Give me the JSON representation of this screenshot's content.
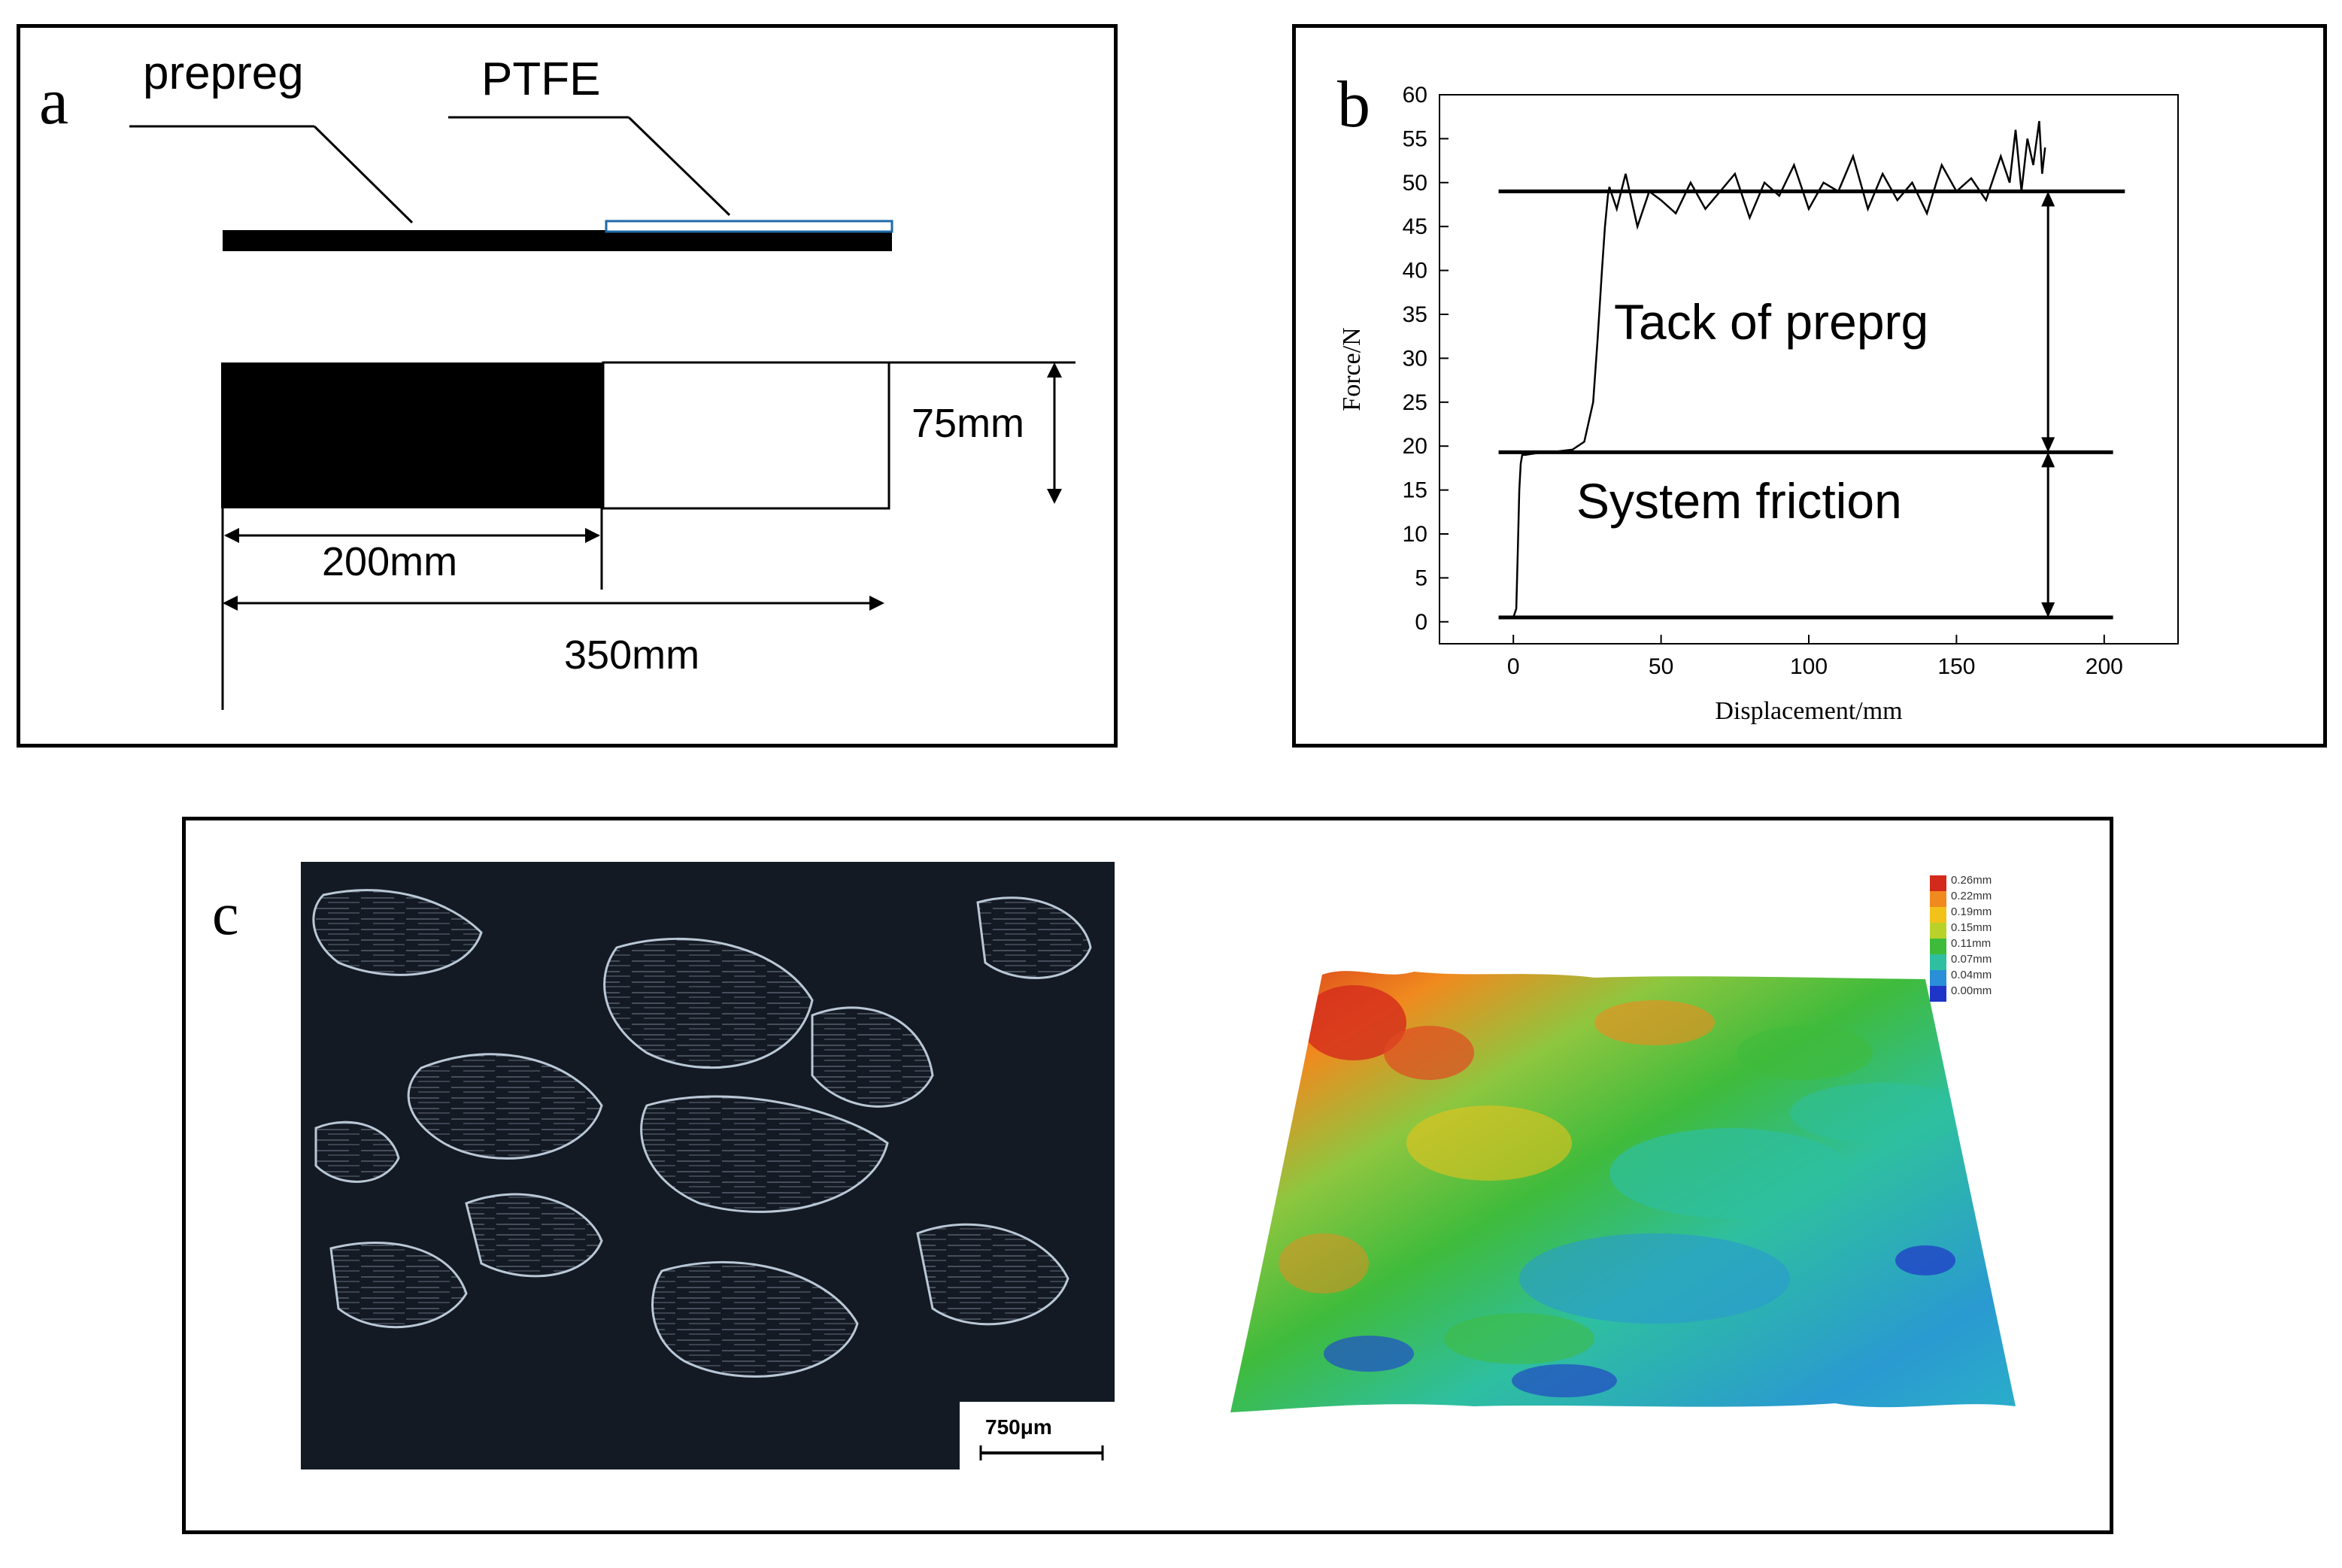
{
  "panel_a": {
    "letter": "a",
    "label_prepreg": "prepreg",
    "label_ptfe": "PTFE",
    "dim_width": "75mm",
    "dim_prepreg_len": "200mm",
    "dim_total_len": "350mm"
  },
  "panel_b": {
    "letter": "b",
    "annotation_tack": "Tack of preprg",
    "annotation_friction": "System friction"
  },
  "panel_c": {
    "letter": "c",
    "scale_bar": "750μm",
    "colorbar_labels": [
      "0.26mm",
      "0.22mm",
      "0.19mm",
      "0.15mm",
      "0.11mm",
      "0.07mm",
      "0.04mm",
      "0.00mm"
    ],
    "colorbar_colors": [
      "#d42a1c",
      "#f08a1e",
      "#f2c21a",
      "#b9d22a",
      "#3fbb3c",
      "#2ebfa0",
      "#2a8fd6",
      "#1f35c8"
    ]
  },
  "chart_data": {
    "type": "line",
    "xlabel": "Displacement/mm",
    "ylabel": "Force/N",
    "xlim": [
      -25,
      225
    ],
    "ylim": [
      -2.5,
      60
    ],
    "xticks": [
      0,
      50,
      100,
      150,
      200
    ],
    "yticks": [
      0,
      5,
      10,
      15,
      20,
      25,
      30,
      35,
      40,
      45,
      50,
      55,
      60
    ],
    "grid": false,
    "series": [
      {
        "x": [
          0,
          1,
          1.5,
          2,
          2.5,
          3,
          4,
          6,
          10,
          15,
          20,
          24,
          27,
          28.5,
          30,
          31,
          32,
          32.5,
          33,
          35,
          38,
          42,
          46,
          50,
          55,
          60,
          65,
          70,
          75,
          80,
          85,
          90,
          95,
          100,
          105,
          110,
          115,
          120,
          125,
          130,
          135,
          140,
          145,
          150,
          155,
          160,
          165,
          168,
          170,
          172,
          174,
          176,
          178,
          179,
          180
        ],
        "y": [
          0.5,
          1.5,
          8,
          15,
          18,
          19,
          19,
          19.1,
          19.3,
          19.4,
          19.6,
          20.5,
          25,
          32,
          40,
          45,
          48.5,
          49.5,
          49,
          47,
          51,
          45,
          49,
          48,
          46.5,
          50,
          47,
          49,
          51,
          46,
          50,
          48.5,
          52,
          47,
          50,
          49,
          53,
          47,
          51,
          48,
          50,
          46.5,
          52,
          49,
          50.5,
          48,
          53,
          50,
          56,
          49,
          55,
          52,
          57,
          51,
          54
        ]
      }
    ],
    "reference_lines": [
      {
        "y": 0.5,
        "x_range": [
          -5,
          203
        ]
      },
      {
        "y": 19.3,
        "x_range": [
          -5,
          203
        ]
      },
      {
        "y": 49,
        "x_range": [
          -5,
          207
        ]
      }
    ],
    "arrows": [
      {
        "x": 181,
        "from": 0.5,
        "to": 19.3
      },
      {
        "x": 181,
        "from": 19.3,
        "to": 49
      }
    ]
  }
}
